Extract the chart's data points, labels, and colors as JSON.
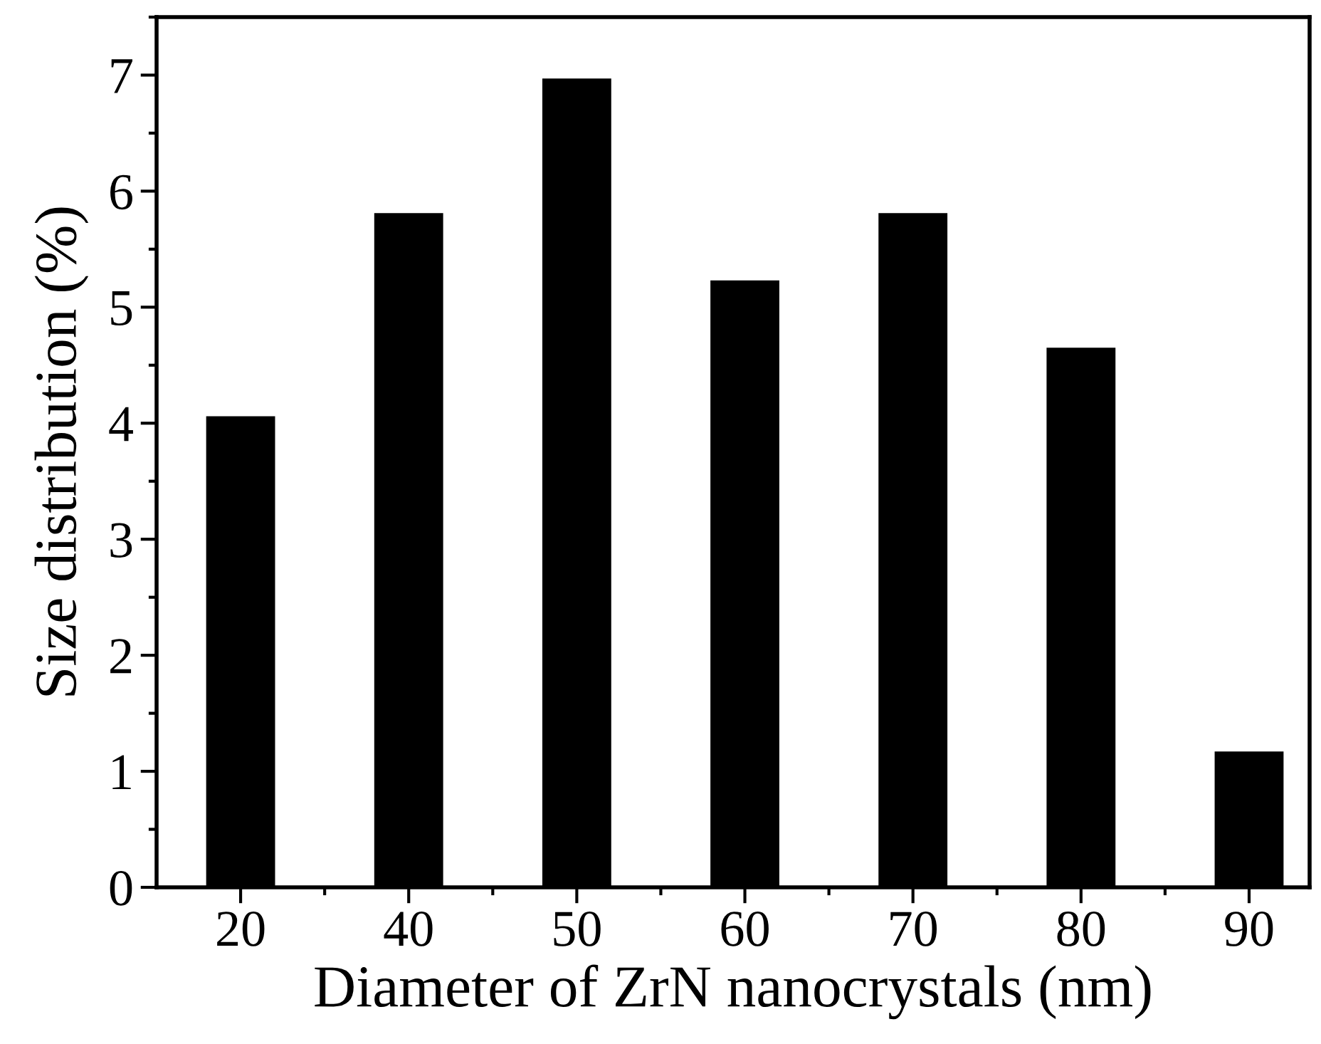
{
  "chart_data": {
    "type": "bar",
    "xlabel": "Diameter of ZrN nanocrystals (nm)",
    "ylabel": "Size distribution (%)",
    "categories": [
      "20",
      "40",
      "50",
      "60",
      "70",
      "80",
      "90"
    ],
    "values": [
      4.06,
      5.81,
      6.97,
      5.23,
      5.81,
      4.65,
      1.17
    ],
    "color": "#000000",
    "ylim": [
      0,
      7.5
    ],
    "yticks": [
      0,
      1,
      2,
      3,
      4,
      5,
      6,
      7
    ],
    "grid": false
  }
}
